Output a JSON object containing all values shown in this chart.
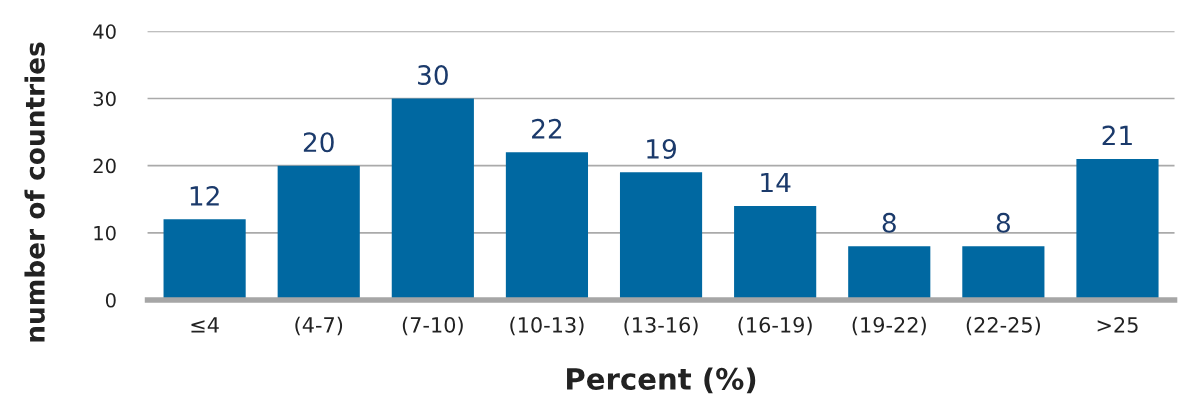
{
  "chart_data": {
    "type": "bar",
    "xlabel": "Percent (%)",
    "ylabel": "number of countries",
    "categories": [
      "≤4",
      "(4-7)",
      "(7-10)",
      "(10-13)",
      "(13-16)",
      "(16-19)",
      "(19-22)",
      "(22-25)",
      ">25"
    ],
    "values": [
      12,
      20,
      30,
      22,
      19,
      14,
      8,
      8,
      21
    ],
    "color": "#0068a1",
    "ylim": [
      0,
      40
    ],
    "yticks": [
      0,
      10,
      20,
      30,
      40
    ],
    "grid": "y",
    "data_labels": true
  }
}
